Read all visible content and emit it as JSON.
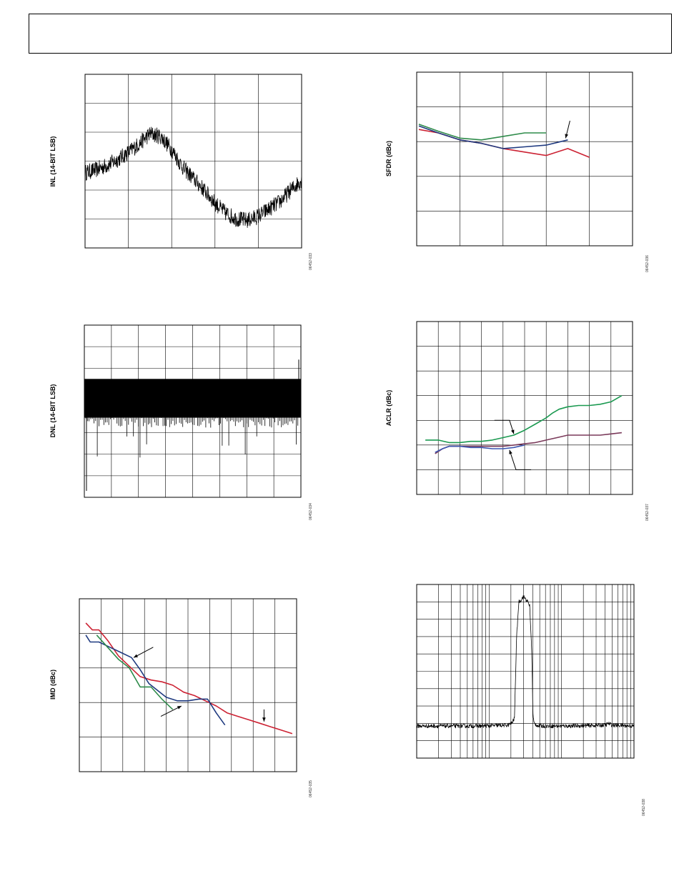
{
  "header": {
    "text": ""
  },
  "chart_data": [
    {
      "id": "inl",
      "type": "line",
      "ylabel": "INL (14-BIT LSB)",
      "figure_id": "06452-033",
      "grid": true,
      "gridCols": 5,
      "gridRows": 6,
      "x": [
        0,
        0.05,
        0.1,
        0.15,
        0.2,
        0.25,
        0.3,
        0.35,
        0.4,
        0.45,
        0.5,
        0.55,
        0.6,
        0.65,
        0.7,
        0.75,
        0.8,
        0.85,
        0.9,
        0.95,
        1.0
      ],
      "xlim": [
        0,
        1
      ],
      "ylim": [
        0,
        6
      ],
      "series": [
        {
          "color": "#000000",
          "noise": 0.28,
          "values": [
            2.6,
            2.7,
            2.85,
            3.05,
            3.3,
            3.6,
            3.95,
            3.85,
            3.4,
            2.8,
            2.4,
            2.0,
            1.55,
            1.2,
            1.0,
            0.95,
            1.1,
            1.35,
            1.6,
            2.0,
            2.35
          ]
        }
      ]
    },
    {
      "id": "dnl",
      "type": "line",
      "ylabel": "DNL (14-BIT LSB)",
      "figure_id": "06452-034",
      "grid": true,
      "gridCols": 8,
      "gridRows": 8,
      "xlim": [
        0,
        1
      ],
      "ylim": [
        0,
        8
      ],
      "band": [
        3.7,
        5.5
      ],
      "color": "#000000"
    },
    {
      "id": "imd",
      "type": "line",
      "ylabel": "IMD (dBc)",
      "figure_id": "06452-035",
      "grid": true,
      "gridCols": 10,
      "gridRows": 5,
      "xlim": [
        0,
        10
      ],
      "ylim": [
        0,
        5
      ],
      "series": [
        {
          "color": "#cc2233",
          "x": [
            0.3,
            0.6,
            0.9,
            1.3,
            1.8,
            2.3,
            2.8,
            3.3,
            3.8,
            4.3,
            4.8,
            5.3,
            5.8,
            6.3,
            6.8,
            7.3,
            7.8,
            8.3,
            8.8,
            9.3,
            9.8
          ],
          "values": [
            4.3,
            4.1,
            4.1,
            3.8,
            3.35,
            3.05,
            2.75,
            2.65,
            2.6,
            2.5,
            2.3,
            2.2,
            2.05,
            1.9,
            1.7,
            1.6,
            1.5,
            1.4,
            1.3,
            1.2,
            1.1
          ]
        },
        {
          "color": "#1f3a80",
          "x": [
            0.3,
            0.5,
            0.9,
            1.4,
            1.9,
            2.4,
            2.8,
            3.2,
            3.6,
            4.0,
            4.5,
            5.0,
            5.5,
            5.9,
            6.3,
            6.7
          ],
          "values": [
            3.95,
            3.75,
            3.75,
            3.6,
            3.45,
            3.3,
            2.95,
            2.55,
            2.35,
            2.15,
            2.05,
            2.05,
            2.1,
            2.1,
            1.7,
            1.35
          ]
        },
        {
          "color": "#2e8b4a",
          "x": [
            0.8,
            1.3,
            1.8,
            2.3,
            2.8,
            3.3,
            3.8,
            4.3
          ],
          "values": [
            3.95,
            3.6,
            3.25,
            3.0,
            2.45,
            2.45,
            2.1,
            1.8
          ]
        }
      ],
      "arrows": [
        {
          "from": [
            3.4,
            3.6
          ],
          "to": [
            2.5,
            3.3
          ]
        },
        {
          "from": [
            3.75,
            1.6
          ],
          "to": [
            4.7,
            1.9
          ]
        },
        {
          "from": [
            8.5,
            1.8
          ],
          "to": [
            8.5,
            1.45
          ]
        }
      ]
    },
    {
      "id": "sfdr",
      "type": "line",
      "ylabel": "SFDR (dBc)",
      "figure_id": "06452-036",
      "grid": true,
      "gridCols": 5,
      "gridRows": 5,
      "xlim": [
        0,
        5
      ],
      "ylim": [
        0,
        5
      ],
      "series": [
        {
          "color": "#cc2233",
          "x": [
            0.05,
            0.5,
            1.0,
            1.5,
            2.0,
            2.5,
            3.0,
            3.5,
            4.0
          ],
          "values": [
            3.35,
            3.25,
            3.05,
            2.95,
            2.8,
            2.7,
            2.6,
            2.8,
            2.55
          ]
        },
        {
          "color": "#2e8b4a",
          "x": [
            0.05,
            0.5,
            1.0,
            1.5,
            2.0,
            2.5,
            3.0
          ],
          "values": [
            3.5,
            3.3,
            3.1,
            3.05,
            3.15,
            3.25,
            3.25
          ]
        },
        {
          "color": "#1f3a80",
          "x": [
            0.05,
            0.5,
            1.0,
            1.5,
            2.0,
            2.5,
            3.0,
            3.5
          ],
          "values": [
            3.45,
            3.25,
            3.05,
            2.95,
            2.8,
            2.85,
            2.9,
            3.05
          ]
        }
      ],
      "arrows": [
        {
          "from": [
            3.55,
            3.6
          ],
          "to": [
            3.45,
            3.1
          ]
        }
      ]
    },
    {
      "id": "aclr",
      "type": "line",
      "ylabel": "ACLR (dBc)",
      "figure_id": "06452-037",
      "grid": true,
      "gridCols": 10,
      "gridRows": 7,
      "xlim": [
        0,
        10
      ],
      "ylim": [
        0,
        7
      ],
      "series": [
        {
          "color": "#1a9950",
          "x": [
            0.4,
            1.0,
            1.5,
            2.0,
            2.5,
            3.0,
            3.5,
            4.0,
            4.5,
            5.0,
            5.5,
            6.0,
            6.3,
            6.6,
            7.0,
            7.5,
            8.0,
            8.5,
            9.0,
            9.5
          ],
          "values": [
            2.2,
            2.2,
            2.1,
            2.1,
            2.15,
            2.15,
            2.2,
            2.3,
            2.4,
            2.6,
            2.85,
            3.1,
            3.3,
            3.45,
            3.55,
            3.6,
            3.6,
            3.65,
            3.75,
            4.0
          ]
        },
        {
          "color": "#7a3a5a",
          "x": [
            0.85,
            1.2,
            1.5,
            2.0,
            2.5,
            3.0,
            3.5,
            4.0,
            4.5,
            5.0,
            5.5,
            6.0,
            6.5,
            7.0,
            7.5,
            8.0,
            8.5,
            9.0,
            9.5
          ],
          "values": [
            1.65,
            1.85,
            1.95,
            1.95,
            1.95,
            1.95,
            1.95,
            1.95,
            2.0,
            2.05,
            2.1,
            2.2,
            2.3,
            2.4,
            2.4,
            2.4,
            2.4,
            2.45,
            2.5
          ]
        },
        {
          "color": "#3a55b0",
          "x": [
            0.85,
            1.2,
            1.5,
            2.0,
            2.5,
            3.0,
            3.5,
            4.0,
            4.5,
            5.0
          ],
          "values": [
            1.7,
            1.85,
            1.95,
            1.95,
            1.9,
            1.9,
            1.85,
            1.85,
            1.9,
            2.0
          ]
        }
      ],
      "arrows": [
        {
          "from": [
            3.6,
            3.0
          ],
          "to": [
            4.3,
            3.0
          ],
          "to2": [
            4.5,
            2.45
          ]
        },
        {
          "from": [
            5.3,
            1.0
          ],
          "to": [
            4.6,
            1.0
          ],
          "to2": [
            4.3,
            1.8
          ]
        }
      ]
    },
    {
      "id": "spectrum",
      "type": "line",
      "figure_id": "06452-038",
      "grid": true,
      "gridRows": 10,
      "logGrid": true,
      "xlim": [
        0,
        1
      ],
      "ylim": [
        0,
        10
      ],
      "series": [
        {
          "color": "#000000",
          "noise": 0.07,
          "x": [
            0.0,
            0.3,
            0.42,
            0.44,
            0.45,
            0.46,
            0.47,
            0.48,
            0.49,
            0.5,
            0.51,
            0.52,
            0.53,
            0.535,
            0.54,
            0.56,
            0.7,
            0.87,
            0.88,
            0.9,
            1.0
          ],
          "values": [
            1.85,
            1.85,
            1.9,
            2.05,
            2.3,
            7.0,
            9.0,
            9.1,
            9.3,
            9.2,
            9.0,
            8.8,
            6.0,
            2.5,
            2.0,
            1.85,
            1.85,
            1.9,
            2.0,
            1.9,
            1.85
          ]
        }
      ]
    }
  ]
}
